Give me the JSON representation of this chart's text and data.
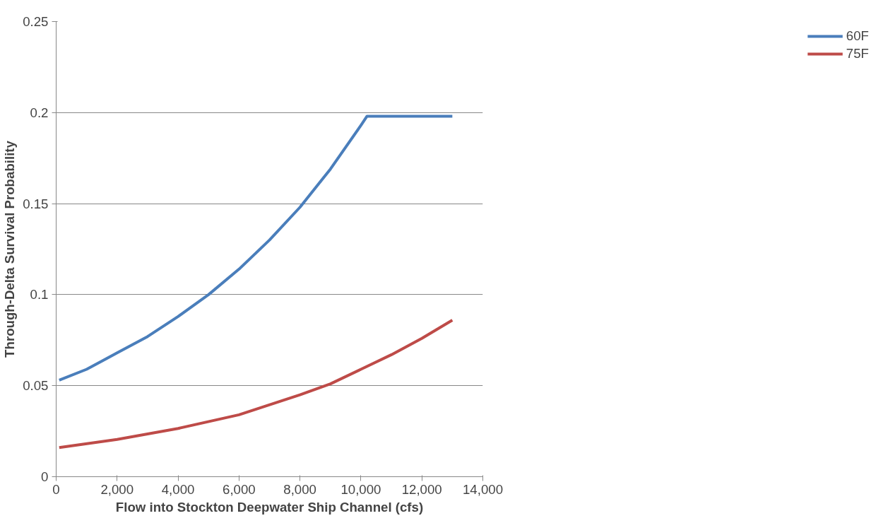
{
  "chart_data": {
    "type": "line",
    "xlabel": "Flow into Stockton Deepwater Ship Channel (cfs)",
    "ylabel": "Through-Delta Survival Probability",
    "xlim": [
      0,
      14000
    ],
    "ylim": [
      0,
      0.25
    ],
    "xticks": [
      0,
      {
        "value": 2000,
        "label": "2,000"
      },
      {
        "value": 4000,
        "label": "4,000"
      },
      {
        "value": 6000,
        "label": "6,000"
      },
      {
        "value": 8000,
        "label": "8,000"
      },
      {
        "value": 10000,
        "label": "10,000"
      },
      {
        "value": 12000,
        "label": "12,000"
      },
      {
        "value": 14000,
        "label": "14,000"
      }
    ],
    "yticks": [
      0,
      0.05,
      0.1,
      0.15,
      0.2,
      0.25
    ],
    "grid": "y",
    "legend": "right",
    "marker": "none",
    "line_style": "solid",
    "series": [
      {
        "name": "60F",
        "color": "#4a7ebb",
        "x": [
          100,
          1000,
          2000,
          3000,
          4000,
          5000,
          6000,
          7000,
          8000,
          9000,
          10000,
          10200,
          13000
        ],
        "values": [
          0.053,
          0.059,
          0.068,
          0.077,
          0.088,
          0.1,
          0.114,
          0.13,
          0.148,
          0.169,
          0.193,
          0.198,
          0.198
        ]
      },
      {
        "name": "75F",
        "color": "#be4b48",
        "x": [
          100,
          2000,
          4000,
          6000,
          8000,
          9000,
          10000,
          11000,
          12000,
          13000
        ],
        "values": [
          0.016,
          0.0205,
          0.0265,
          0.034,
          0.045,
          0.051,
          0.059,
          0.067,
          0.076,
          0.086
        ]
      }
    ]
  }
}
